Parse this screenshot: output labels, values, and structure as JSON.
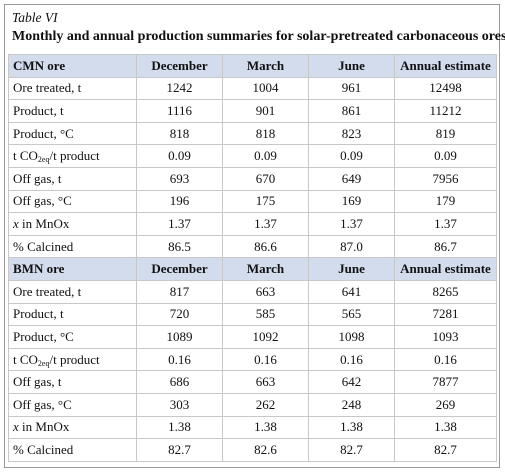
{
  "caption": {
    "label": "Table VI",
    "title": "Monthly and annual production summaries for solar-pretreated carbonaceous ores"
  },
  "sections": [
    {
      "header": [
        "CMN ore",
        "December",
        "March",
        "June",
        "Annual estimate"
      ],
      "rows": [
        {
          "label": "Ore treated, t",
          "values": [
            "1242",
            "1004",
            "961",
            "12498"
          ]
        },
        {
          "label": "Product, t",
          "values": [
            "1116",
            "901",
            "861",
            "11212"
          ]
        },
        {
          "label": "Product, °C",
          "values": [
            "818",
            "818",
            "823",
            "819"
          ]
        },
        {
          "label_pre": "t CO",
          "label_sub": "2eq",
          "label_post": "/t product",
          "values": [
            "0.09",
            "0.09",
            "0.09",
            "0.09"
          ]
        },
        {
          "label": "Off gas, t",
          "values": [
            "693",
            "670",
            "649",
            "7956"
          ]
        },
        {
          "label": "Off gas, °C",
          "values": [
            "196",
            "175",
            "169",
            "179"
          ]
        },
        {
          "label_ital": "x",
          "label_rest": " in MnOx",
          "values": [
            "1.37",
            "1.37",
            "1.37",
            "1.37"
          ]
        },
        {
          "label": "% Calcined",
          "values": [
            "86.5",
            "86.6",
            "87.0",
            "86.7"
          ]
        }
      ]
    },
    {
      "header": [
        "BMN ore",
        "December",
        "March",
        "June",
        "Annual estimate"
      ],
      "rows": [
        {
          "label": "Ore treated, t",
          "values": [
            "817",
            "663",
            "641",
            "8265"
          ]
        },
        {
          "label": "Product, t",
          "values": [
            "720",
            "585",
            "565",
            "7281"
          ]
        },
        {
          "label": "Product, °C",
          "values": [
            "1089",
            "1092",
            "1098",
            "1093"
          ]
        },
        {
          "label_pre": "t CO",
          "label_sub": "2eq",
          "label_post": "/t product",
          "values": [
            "0.16",
            "0.16",
            "0.16",
            "0.16"
          ]
        },
        {
          "label": "Off gas, t",
          "values": [
            "686",
            "663",
            "642",
            "7877"
          ]
        },
        {
          "label": "Off gas, °C",
          "values": [
            "303",
            "262",
            "248",
            "269"
          ]
        },
        {
          "label_ital": "x",
          "label_rest": " in MnOx",
          "values": [
            "1.38",
            "1.38",
            "1.38",
            "1.38"
          ]
        },
        {
          "label": "% Calcined",
          "values": [
            "82.7",
            "82.6",
            "82.7",
            "82.7"
          ]
        }
      ]
    }
  ],
  "colors": {
    "header_bg": "#d3dced",
    "border": "#c8c8c8",
    "frame": "#9a9a9a"
  }
}
